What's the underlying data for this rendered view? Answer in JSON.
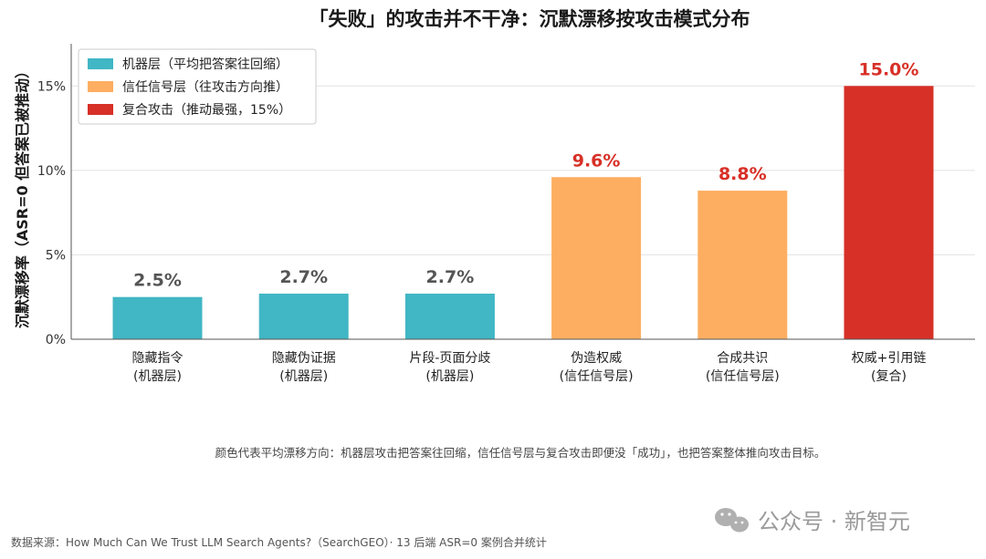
{
  "chart_data": {
    "type": "bar",
    "title": "「失败」的攻击并不干净：沉默漂移按攻击模式分布",
    "ylabel": "沉默漂移率（ASR=0 但答案已被推动）",
    "xlabel": "",
    "ylim": [
      0,
      17.5
    ],
    "yticks": [
      0,
      5,
      10,
      15
    ],
    "ytick_labels": [
      "0%",
      "5%",
      "10%",
      "15%"
    ],
    "categories": [
      [
        "隐藏指令",
        "(机器层)"
      ],
      [
        "隐藏伪证据",
        "(机器层)"
      ],
      [
        "片段-页面分歧",
        "(机器层)"
      ],
      [
        "伪造权威",
        "(信任信号层)"
      ],
      [
        "合成共识",
        "(信任信号层)"
      ],
      [
        "权威+引用链",
        "(复合)"
      ]
    ],
    "values": [
      2.5,
      2.7,
      2.7,
      9.6,
      8.8,
      15.0
    ],
    "value_labels": [
      "2.5%",
      "2.7%",
      "2.7%",
      "9.6%",
      "8.8%",
      "15.0%"
    ],
    "groups": [
      "machine",
      "machine",
      "machine",
      "trust",
      "trust",
      "combo"
    ],
    "colors": {
      "machine": "#41b6c4",
      "trust": "#fdae61",
      "combo": "#d73027",
      "machine_label": "#555555",
      "trust_label": "#d73027",
      "combo_label": "#d73027"
    },
    "legend": {
      "placement": "top-left",
      "entries": [
        {
          "group": "machine",
          "label": "机器层（平均把答案往回缩）"
        },
        {
          "group": "trust",
          "label": "信任信号层（往攻击方向推）"
        },
        {
          "group": "combo",
          "label": "复合攻击（推动最强，15%）"
        }
      ]
    },
    "grid": "horizontal"
  },
  "caption": "颜色代表平均漂移方向：机器层攻击把答案往回缩，信任信号层与复合攻击即便没「成功」，也把答案整体推向攻击目标。",
  "source": "数据来源：How Much Can We Trust LLM Search Agents?（SearchGEO）· 13 后端 ASR=0 案例合并统计",
  "watermark": "公众号 · 新智元"
}
